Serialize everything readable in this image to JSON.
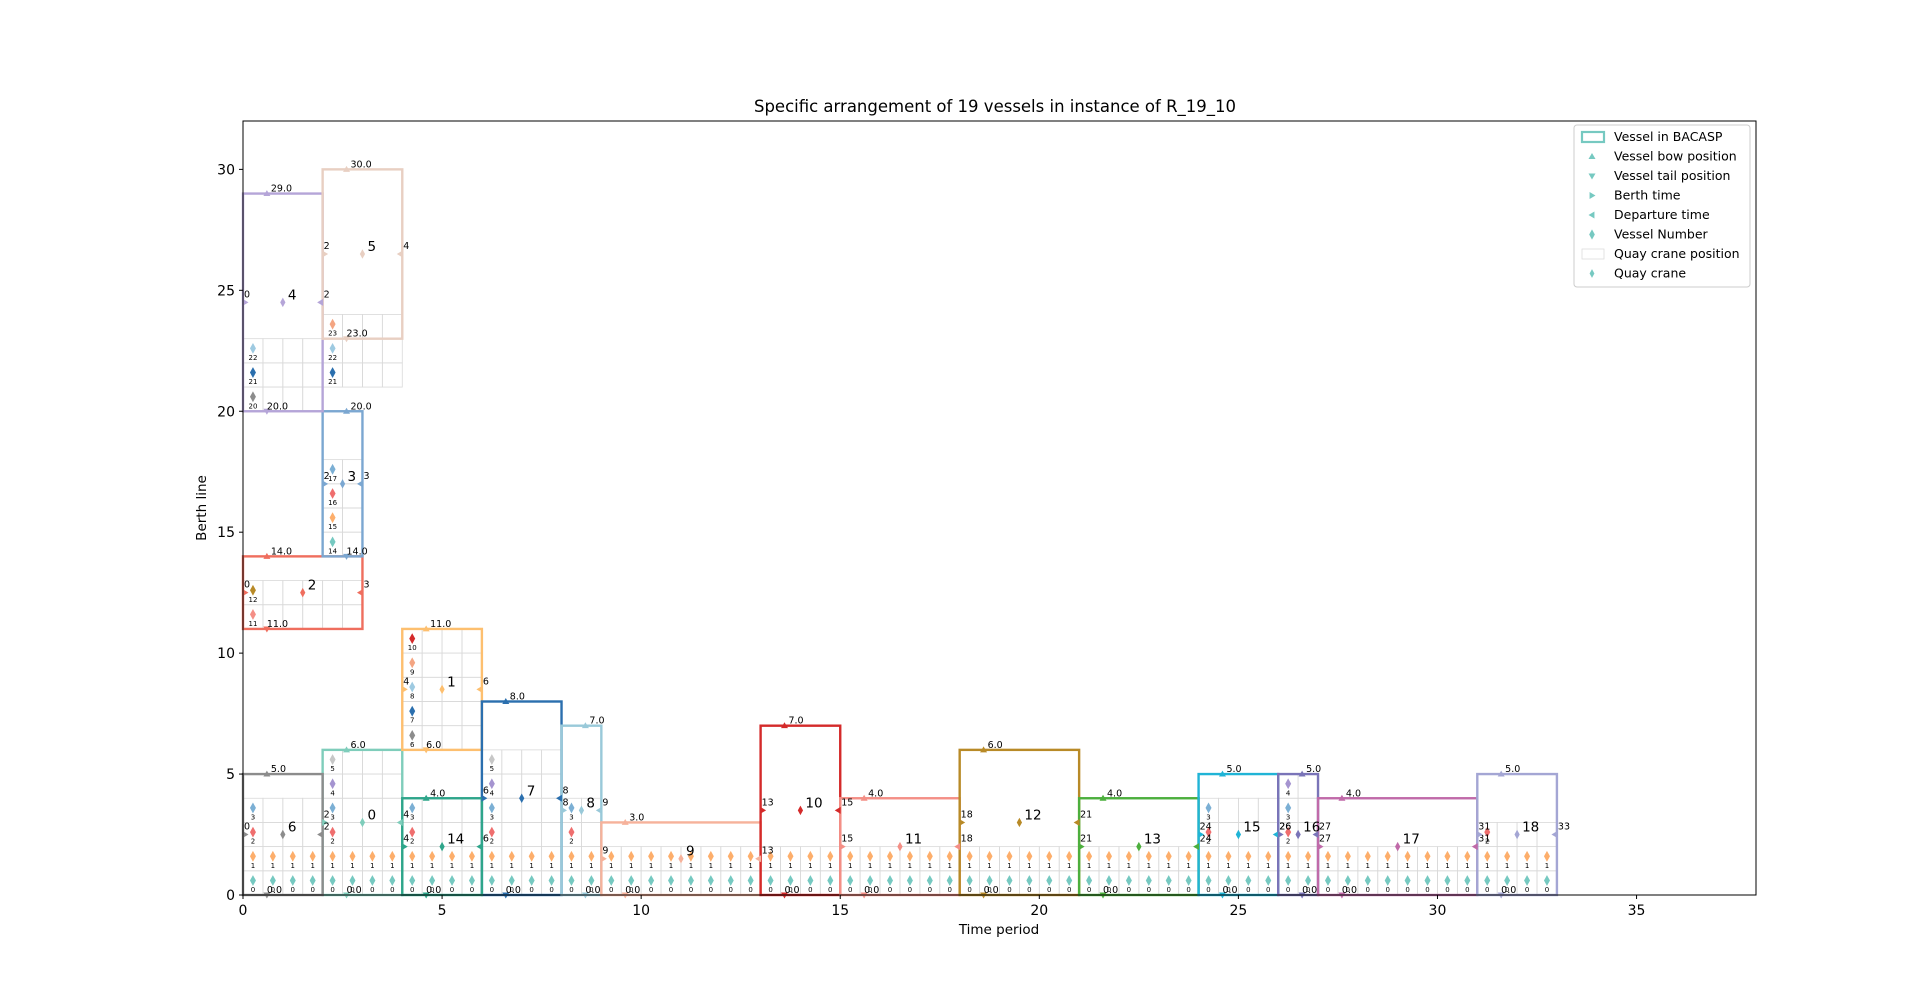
{
  "chart_data": {
    "type": "gantt-rectangles",
    "title": "Specific arrangement of 19 vessels in instance of R_19_10",
    "xlabel": "Time period",
    "ylabel": "Berth line",
    "xlim": [
      0,
      38
    ],
    "ylim": [
      0,
      32
    ],
    "xticks": [
      "0",
      "5",
      "10",
      "15",
      "20",
      "25",
      "30",
      "35"
    ],
    "yticks": [
      "0",
      "5",
      "10",
      "15",
      "20",
      "25",
      "30"
    ],
    "legend": {
      "location": "top-right",
      "entries": [
        "Vessel in BACASP",
        "Vessel bow position",
        "Vessel tail position",
        "Berth time",
        "Departure time",
        "Vessel Number",
        "Quay crane position",
        "Quay crane"
      ]
    },
    "vessels": [
      {
        "id": 0,
        "berth": 2,
        "depart": 4,
        "tail": 0,
        "bow": 6,
        "color": "#7fcdbb",
        "time_labels": [
          "2",
          "4"
        ],
        "pos_labels": [
          "0.0",
          "6.0"
        ],
        "cranes": [
          0,
          1,
          2,
          3,
          4,
          5
        ]
      },
      {
        "id": 1,
        "berth": 4,
        "depart": 6,
        "tail": 6,
        "bow": 11,
        "color": "#fdbf6f",
        "time_labels": [
          "4",
          "6"
        ],
        "pos_labels": [
          "6.0",
          "11.0"
        ],
        "cranes": [
          6,
          7,
          8,
          9,
          10
        ]
      },
      {
        "id": 2,
        "berth": 0,
        "depart": 3,
        "tail": 11,
        "bow": 14,
        "color": "#ef6e5e",
        "time_labels": [
          "0",
          "3"
        ],
        "pos_labels": [
          "11.0",
          "14.0"
        ],
        "cranes": [
          11,
          12
        ]
      },
      {
        "id": 3,
        "berth": 2,
        "depart": 3,
        "tail": 14,
        "bow": 20,
        "color": "#7ba7d1",
        "time_labels": [
          "2",
          "3"
        ],
        "pos_labels": [
          "14.0",
          "20.0"
        ],
        "cranes": [
          14,
          15,
          16,
          17
        ]
      },
      {
        "id": 4,
        "berth": 0,
        "depart": 2,
        "tail": 20,
        "bow": 29,
        "color": "#b5a5d8",
        "time_labels": [
          "0",
          "2"
        ],
        "pos_labels": [
          "20.0",
          "29.0"
        ],
        "cranes": [
          20,
          21,
          22
        ]
      },
      {
        "id": 5,
        "berth": 2,
        "depart": 4,
        "tail": 23,
        "bow": 30,
        "color": "#e8cfc2",
        "time_labels": [
          "2",
          "4"
        ],
        "pos_labels": [
          "23.0",
          "30.0"
        ],
        "cranes": [
          21,
          22,
          23
        ]
      },
      {
        "id": 6,
        "berth": 0,
        "depart": 2,
        "tail": 0,
        "bow": 5,
        "color": "#8c8c8c",
        "time_labels": [
          "0",
          "2"
        ],
        "pos_labels": [
          "0.0",
          "5.0"
        ],
        "cranes": [
          0,
          1,
          2,
          3
        ]
      },
      {
        "id": 7,
        "berth": 6,
        "depart": 8,
        "tail": 0,
        "bow": 8,
        "color": "#2b6fae",
        "time_labels": [
          "6",
          "8"
        ],
        "pos_labels": [
          "0.0",
          "8.0"
        ],
        "cranes": [
          0,
          1,
          2,
          3,
          4,
          5
        ]
      },
      {
        "id": 8,
        "berth": 8,
        "depart": 9,
        "tail": 0,
        "bow": 7,
        "color": "#99c9d9",
        "time_labels": [
          "8",
          "9"
        ],
        "pos_labels": [
          "0.0",
          "7.0"
        ],
        "cranes": [
          0,
          1,
          2,
          3
        ]
      },
      {
        "id": 9,
        "berth": 9,
        "depart": 13,
        "tail": 0,
        "bow": 3,
        "color": "#f6b29b",
        "time_labels": [
          "9",
          "13"
        ],
        "pos_labels": [
          "0.0",
          "3.0"
        ],
        "cranes": [
          0,
          1
        ]
      },
      {
        "id": 10,
        "berth": 13,
        "depart": 15,
        "tail": 0,
        "bow": 7,
        "color": "#d42a2a",
        "time_labels": [
          "13",
          "15"
        ],
        "pos_labels": [
          "0.0",
          "7.0"
        ],
        "cranes": [
          0,
          1
        ]
      },
      {
        "id": 11,
        "berth": 15,
        "depart": 18,
        "tail": 0,
        "bow": 4,
        "color": "#f48f86",
        "time_labels": [
          "15",
          "18"
        ],
        "pos_labels": [
          "0.0",
          "4.0"
        ],
        "cranes": [
          0,
          1
        ]
      },
      {
        "id": 12,
        "berth": 18,
        "depart": 21,
        "tail": 0,
        "bow": 6,
        "color": "#b88a27",
        "time_labels": [
          "18",
          "21"
        ],
        "pos_labels": [
          "0.0",
          "6.0"
        ],
        "cranes": [
          0,
          1
        ]
      },
      {
        "id": 13,
        "berth": 21,
        "depart": 24,
        "tail": 0,
        "bow": 4,
        "color": "#4caf3d",
        "time_labels": [
          "21",
          "24"
        ],
        "pos_labels": [
          "0.0",
          "4.0"
        ],
        "cranes": [
          0,
          1
        ]
      },
      {
        "id": 14,
        "berth": 4,
        "depart": 6,
        "tail": 0,
        "bow": 4,
        "color": "#2ea58a",
        "time_labels": [
          "4",
          "6"
        ],
        "pos_labels": [
          "0.0",
          "4.0"
        ],
        "cranes": [
          0,
          1,
          2,
          3
        ]
      },
      {
        "id": 15,
        "berth": 24,
        "depart": 26,
        "tail": 0,
        "bow": 5,
        "color": "#20b4d6",
        "time_labels": [
          "24",
          "26"
        ],
        "pos_labels": [
          "0.0",
          "5.0"
        ],
        "cranes": [
          0,
          1,
          2,
          3
        ]
      },
      {
        "id": 16,
        "berth": 26,
        "depart": 27,
        "tail": 0,
        "bow": 5,
        "color": "#7a74b8",
        "time_labels": [
          "26",
          "27"
        ],
        "pos_labels": [
          "0.0",
          "5.0"
        ],
        "cranes": [
          0,
          1,
          2,
          3,
          4
        ]
      },
      {
        "id": 17,
        "berth": 27,
        "depart": 31,
        "tail": 0,
        "bow": 4,
        "color": "#c06aa9",
        "time_labels": [
          "27",
          "31"
        ],
        "pos_labels": [
          "0.0",
          "4.0"
        ],
        "cranes": [
          0,
          1
        ]
      },
      {
        "id": 18,
        "berth": 31,
        "depart": 33,
        "tail": 0,
        "bow": 5,
        "color": "#a4a6d4",
        "time_labels": [
          "31",
          "33"
        ],
        "pos_labels": [
          "0.0",
          "5.0"
        ],
        "cranes": [
          0,
          1,
          2
        ]
      }
    ]
  }
}
